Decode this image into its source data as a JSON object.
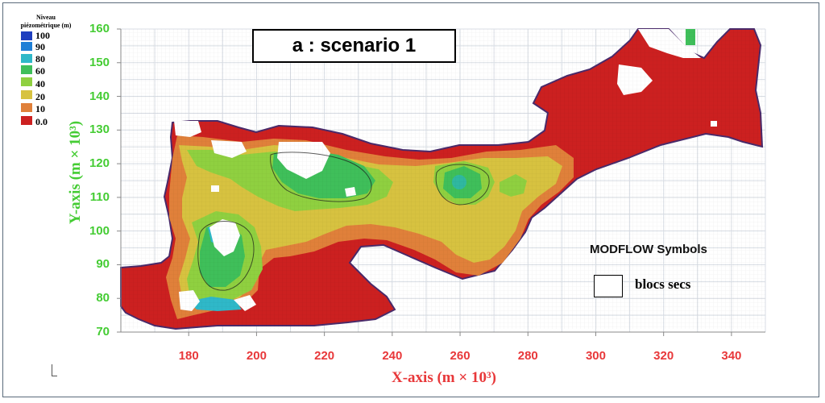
{
  "figure": {
    "scenario_label": "a : scenario 1",
    "modflow_title": "MODFLOW Symbols",
    "dry_cells_label": "blocs secs"
  },
  "legend": {
    "title": "Niveau piézométrique (m)",
    "entries": [
      {
        "label": "100",
        "color": "#1f3fbf"
      },
      {
        "label": "90",
        "color": "#1f7fd6"
      },
      {
        "label": "80",
        "color": "#2fb8c8"
      },
      {
        "label": "60",
        "color": "#3fbf5a"
      },
      {
        "label": "40",
        "color": "#8fd040"
      },
      {
        "label": "20",
        "color": "#d7c240"
      },
      {
        "label": "10",
        "color": "#e0803a"
      },
      {
        "label": "0.0",
        "color": "#cc2020"
      }
    ]
  },
  "chart_data": {
    "type": "heatmap",
    "title": "a : scenario 1",
    "xlabel": "X-axis (m × 10³)",
    "ylabel": "Y-axis (m × 10³)",
    "xlim": [
      160,
      350
    ],
    "ylim": [
      70,
      160
    ],
    "x_ticks": [
      "180",
      "200",
      "220",
      "240",
      "260",
      "280",
      "300",
      "320",
      "340"
    ],
    "y_ticks": [
      "70",
      "80",
      "90",
      "100",
      "110",
      "120",
      "130",
      "140",
      "150",
      "160"
    ],
    "grid": true,
    "colorbar": {
      "title": "Niveau piézométrique (m)",
      "levels": [
        100,
        90,
        80,
        60,
        40,
        20,
        10,
        0.0
      ]
    },
    "legend_position": "right",
    "colors": {
      "x_axis_text": "#e8383a",
      "y_axis_text": "#44cc33",
      "dry_cells": "#ffffff"
    }
  }
}
